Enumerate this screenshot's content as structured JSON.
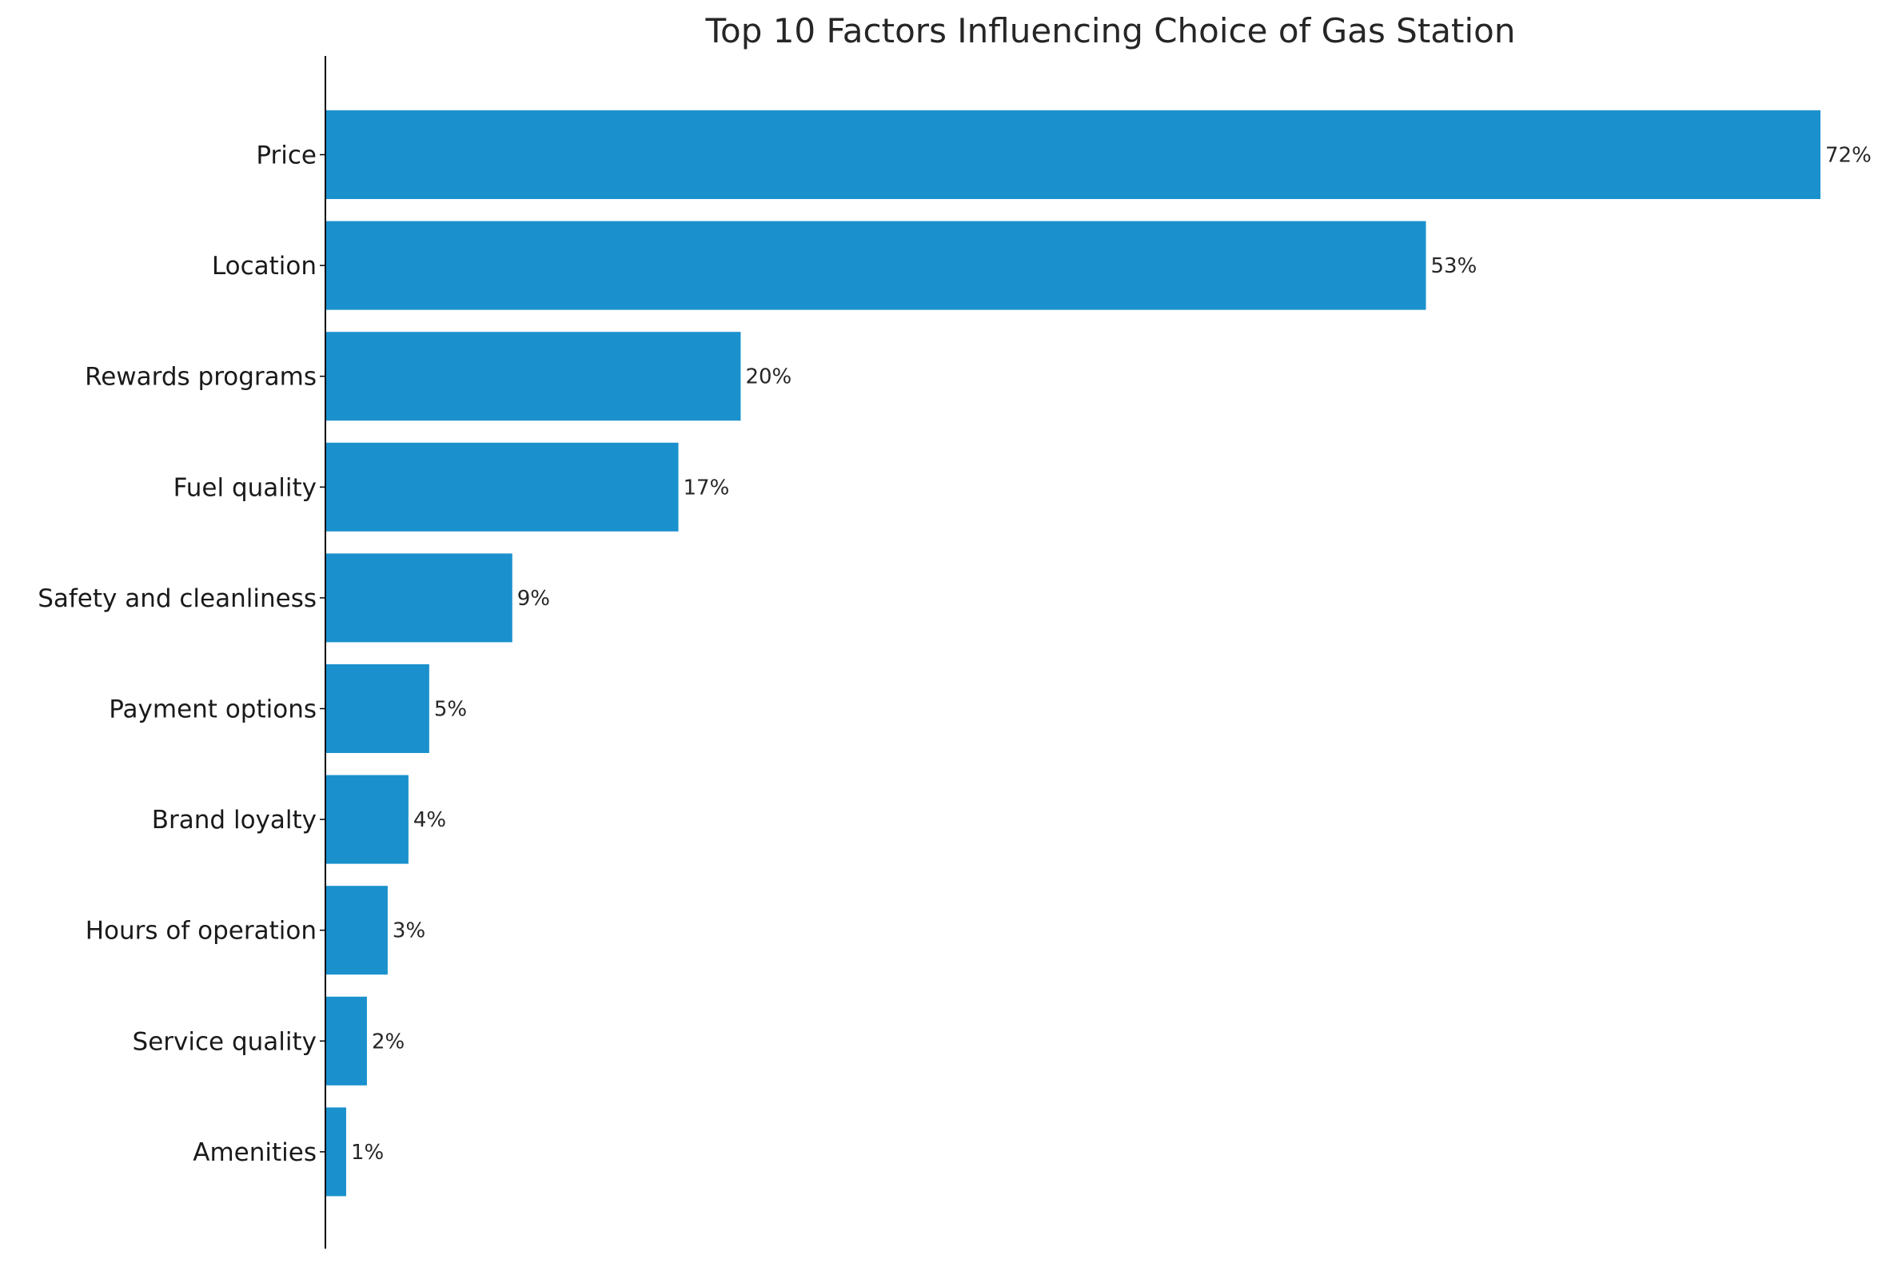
{
  "chart_data": {
    "type": "bar",
    "orientation": "horizontal",
    "title": "Top 10 Factors Influencing Choice of Gas Station",
    "xlabel": "",
    "ylabel": "",
    "categories": [
      "Price",
      "Location",
      "Rewards programs",
      "Fuel quality",
      "Safety and cleanliness",
      "Payment options",
      "Brand loyalty",
      "Hours of operation",
      "Service quality",
      "Amenities"
    ],
    "values": [
      72,
      53,
      20,
      17,
      9,
      5,
      4,
      3,
      2,
      1
    ],
    "data_labels": [
      "72%",
      "53%",
      "20%",
      "17%",
      "9%",
      "5%",
      "4%",
      "3%",
      "2%",
      "1%"
    ],
    "unit": "%",
    "xlim": [
      0,
      72
    ],
    "grid": false,
    "legend": "none",
    "bar_color": "#1a91cd"
  }
}
